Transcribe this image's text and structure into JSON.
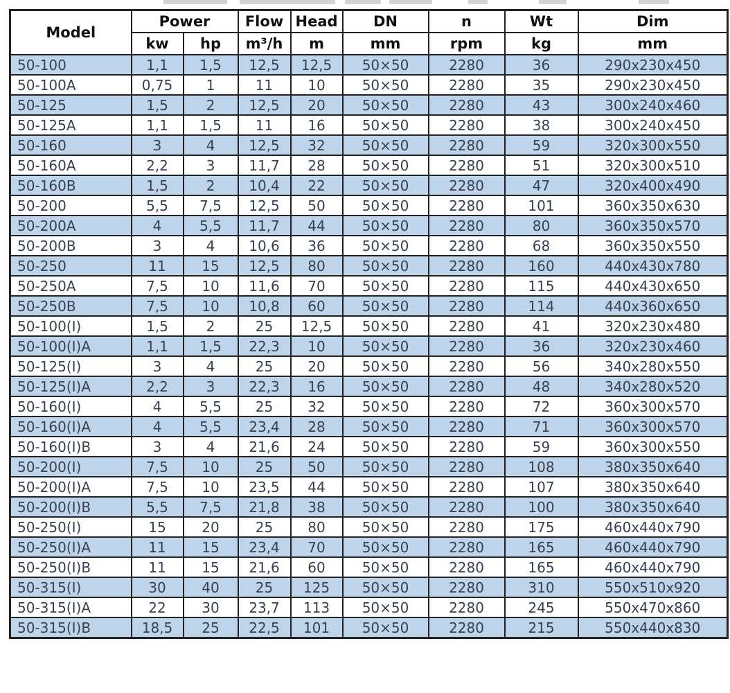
{
  "colors": {
    "row_alt_blue": "#bdd4ea",
    "grid": "#222222",
    "text": "#37404e",
    "header_text": "#111111",
    "page_bg": "#ffffff"
  },
  "chart_data": {
    "type": "table",
    "title": "",
    "header": {
      "model": "Model",
      "power": "Power",
      "kw": "kw",
      "hp": "hp",
      "flow": "Flow",
      "flow_unit": "m³/h",
      "head": "Head",
      "head_unit": "m",
      "dn": "DN",
      "dn_unit": "mm",
      "n": "n",
      "n_unit": "rpm",
      "wt": "Wt",
      "wt_unit": "kg",
      "dim": "Dim",
      "dim_unit": "mm"
    },
    "columns_flat": [
      "Model",
      "Power kw",
      "Power hp",
      "Flow m³/h",
      "Head m",
      "DN mm",
      "n rpm",
      "Wt kg",
      "Dim mm"
    ],
    "rows": [
      [
        "50-100",
        "1,1",
        "1,5",
        "12,5",
        "12,5",
        "50×50",
        "2280",
        "36",
        "290x230x450"
      ],
      [
        "50-100A",
        "0,75",
        "1",
        "11",
        "10",
        "50×50",
        "2280",
        "35",
        "290x230x450"
      ],
      [
        "50-125",
        "1,5",
        "2",
        "12,5",
        "20",
        "50×50",
        "2280",
        "43",
        "300x240x460"
      ],
      [
        "50-125A",
        "1,1",
        "1,5",
        "11",
        "16",
        "50×50",
        "2280",
        "38",
        "300x240x450"
      ],
      [
        "50-160",
        "3",
        "4",
        "12,5",
        "32",
        "50×50",
        "2280",
        "59",
        "320x300x550"
      ],
      [
        "50-160A",
        "2,2",
        "3",
        "11,7",
        "28",
        "50×50",
        "2280",
        "51",
        "320x300x510"
      ],
      [
        "50-160B",
        "1,5",
        "2",
        "10,4",
        "22",
        "50×50",
        "2280",
        "47",
        "320x400x490"
      ],
      [
        "50-200",
        "5,5",
        "7,5",
        "12,5",
        "50",
        "50×50",
        "2280",
        "101",
        "360x350x630"
      ],
      [
        "50-200A",
        "4",
        "5,5",
        "11,7",
        "44",
        "50×50",
        "2280",
        "80",
        "360x350x570"
      ],
      [
        "50-200B",
        "3",
        "4",
        "10,6",
        "36",
        "50×50",
        "2280",
        "68",
        "360x350x550"
      ],
      [
        "50-250",
        "11",
        "15",
        "12,5",
        "80",
        "50×50",
        "2280",
        "160",
        "440x430x780"
      ],
      [
        "50-250A",
        "7,5",
        "10",
        "11,6",
        "70",
        "50×50",
        "2280",
        "115",
        "440x430x650"
      ],
      [
        "50-250B",
        "7,5",
        "10",
        "10,8",
        "60",
        "50×50",
        "2280",
        "114",
        "440x360x650"
      ],
      [
        "50-100(I)",
        "1,5",
        "2",
        "25",
        "12,5",
        "50×50",
        "2280",
        "41",
        "320x230x480"
      ],
      [
        "50-100(I)A",
        "1,1",
        "1,5",
        "22,3",
        "10",
        "50×50",
        "2280",
        "36",
        "320x230x460"
      ],
      [
        "50-125(I)",
        "3",
        "4",
        "25",
        "20",
        "50×50",
        "2280",
        "56",
        "340x280x550"
      ],
      [
        "50-125(I)A",
        "2,2",
        "3",
        "22,3",
        "16",
        "50×50",
        "2280",
        "48",
        "340x280x520"
      ],
      [
        "50-160(I)",
        "4",
        "5,5",
        "25",
        "32",
        "50×50",
        "2280",
        "72",
        "360x300x570"
      ],
      [
        "50-160(I)A",
        "4",
        "5,5",
        "23,4",
        "28",
        "50×50",
        "2280",
        "71",
        "360x300x570"
      ],
      [
        "50-160(I)B",
        "3",
        "4",
        "21,6",
        "24",
        "50×50",
        "2280",
        "59",
        "360x300x550"
      ],
      [
        "50-200(I)",
        "7,5",
        "10",
        "25",
        "50",
        "50×50",
        "2280",
        "108",
        "380x350x640"
      ],
      [
        "50-200(I)A",
        "7,5",
        "10",
        "23,5",
        "44",
        "50×50",
        "2280",
        "107",
        "380x350x640"
      ],
      [
        "50-200(I)B",
        "5,5",
        "7,5",
        "21,8",
        "38",
        "50×50",
        "2280",
        "100",
        "380x350x640"
      ],
      [
        "50-250(I)",
        "15",
        "20",
        "25",
        "80",
        "50×50",
        "2280",
        "175",
        "460x440x790"
      ],
      [
        "50-250(I)A",
        "11",
        "15",
        "23,4",
        "70",
        "50×50",
        "2280",
        "165",
        "460x440x790"
      ],
      [
        "50-250(I)B",
        "11",
        "15",
        "21,6",
        "60",
        "50×50",
        "2280",
        "165",
        "460x440x790"
      ],
      [
        "50-315(I)",
        "30",
        "40",
        "25",
        "125",
        "50×50",
        "2280",
        "310",
        "550x510x920"
      ],
      [
        "50-315(I)A",
        "22",
        "30",
        "23,7",
        "113",
        "50×50",
        "2280",
        "245",
        "550x470x860"
      ],
      [
        "50-315(I)B",
        "18,5",
        "25",
        "22,5",
        "101",
        "50×50",
        "2280",
        "215",
        "550x440x830"
      ]
    ],
    "layout": {
      "first_data_row_shade": "blue",
      "shading": "alternating blue/white",
      "grid": "on"
    }
  }
}
